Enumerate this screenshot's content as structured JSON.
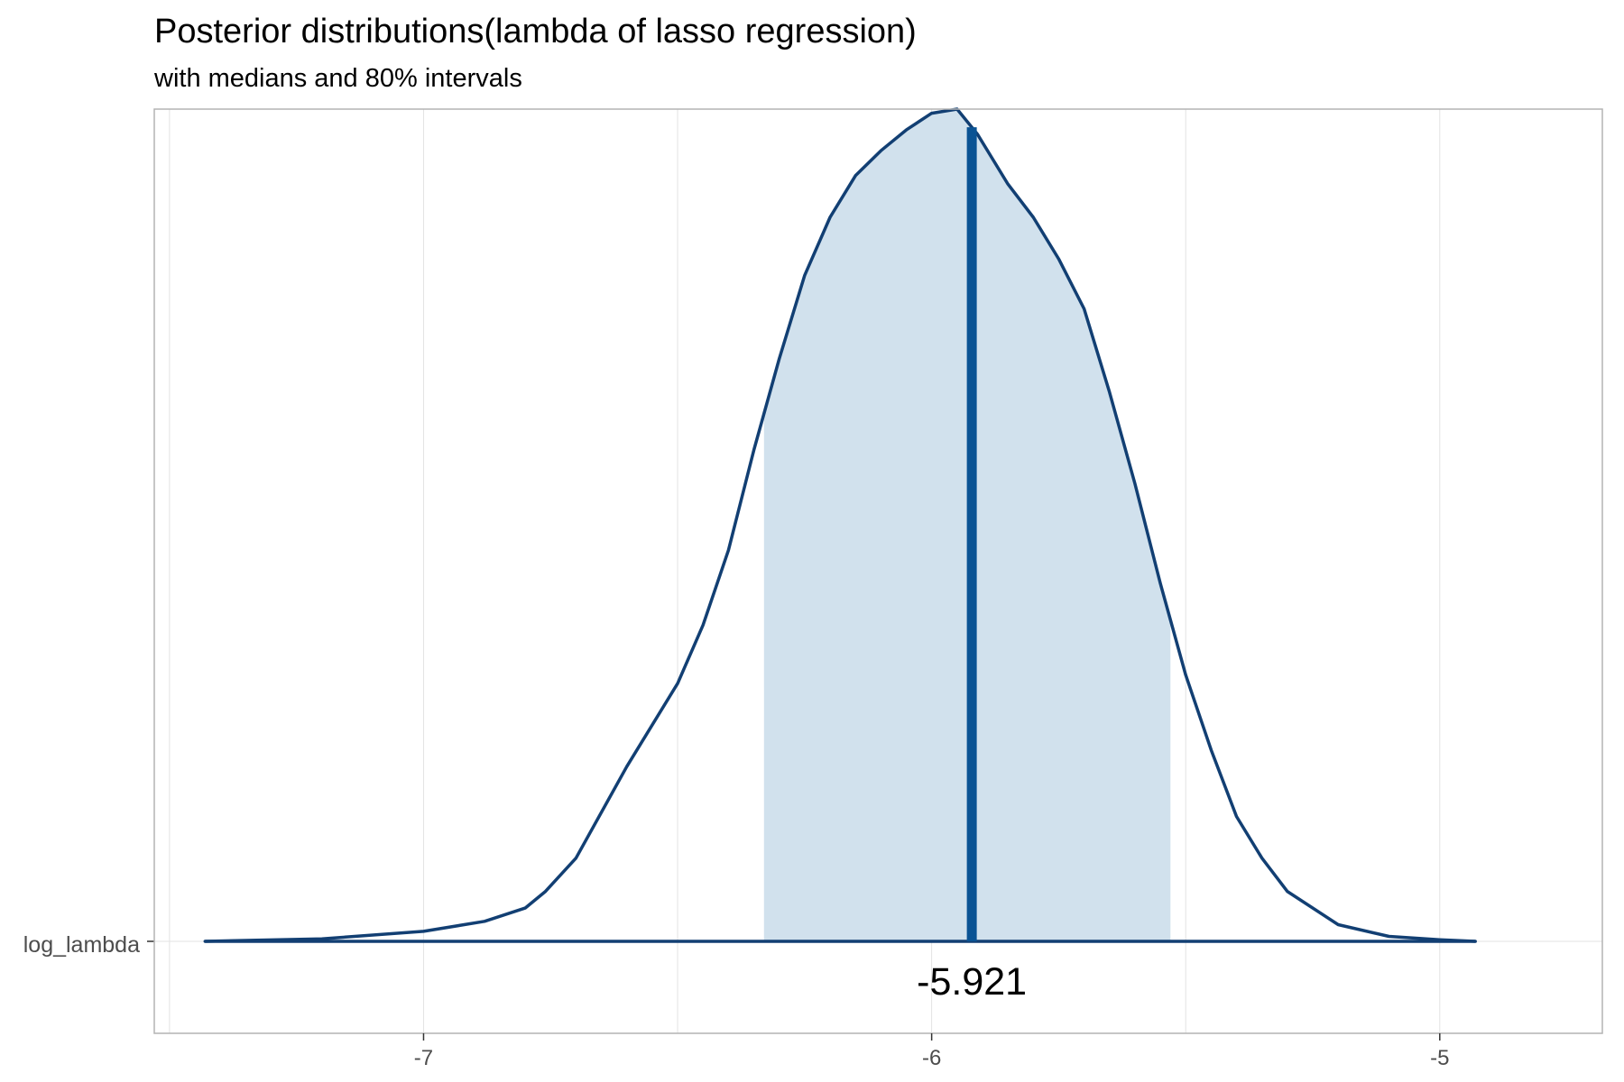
{
  "chart_data": {
    "type": "area",
    "title": "Posterior distributions(lambda of lasso regression)",
    "subtitle": "with medians and 80% intervals",
    "xlabel": "",
    "ylabel": "",
    "parameter": "log_lambda",
    "median": -5.921,
    "median_label": "-5.921",
    "interval_80": [
      -6.33,
      -5.53
    ],
    "xlim": [
      -7.53,
      -4.68
    ],
    "x_ticks": [
      -7,
      -6,
      -5
    ],
    "x_tick_labels": [
      "-7",
      "-6",
      "-5"
    ],
    "grid": true,
    "density": {
      "x": [
        -7.43,
        -7.2,
        -7.0,
        -6.88,
        -6.8,
        -6.76,
        -6.7,
        -6.6,
        -6.5,
        -6.45,
        -6.4,
        -6.35,
        -6.3,
        -6.25,
        -6.2,
        -6.15,
        -6.1,
        -6.05,
        -6.0,
        -5.95,
        -5.91,
        -5.88,
        -5.85,
        -5.8,
        -5.75,
        -5.7,
        -5.65,
        -5.6,
        -5.55,
        -5.5,
        -5.45,
        -5.4,
        -5.35,
        -5.3,
        -5.2,
        -5.1,
        -5.0,
        -4.93
      ],
      "y": [
        0.0,
        0.003,
        0.012,
        0.024,
        0.04,
        0.06,
        0.1,
        0.21,
        0.31,
        0.38,
        0.47,
        0.59,
        0.7,
        0.8,
        0.87,
        0.92,
        0.95,
        0.975,
        0.995,
        1.0,
        0.97,
        0.94,
        0.91,
        0.87,
        0.82,
        0.76,
        0.66,
        0.55,
        0.43,
        0.32,
        0.23,
        0.15,
        0.1,
        0.06,
        0.02,
        0.006,
        0.002,
        0.0
      ]
    },
    "colors": {
      "line": "#123f73",
      "fill": "#d1e1ed",
      "median": "#0a5394",
      "grid": "#e3e3e3",
      "border": "#b3b3b3"
    }
  }
}
